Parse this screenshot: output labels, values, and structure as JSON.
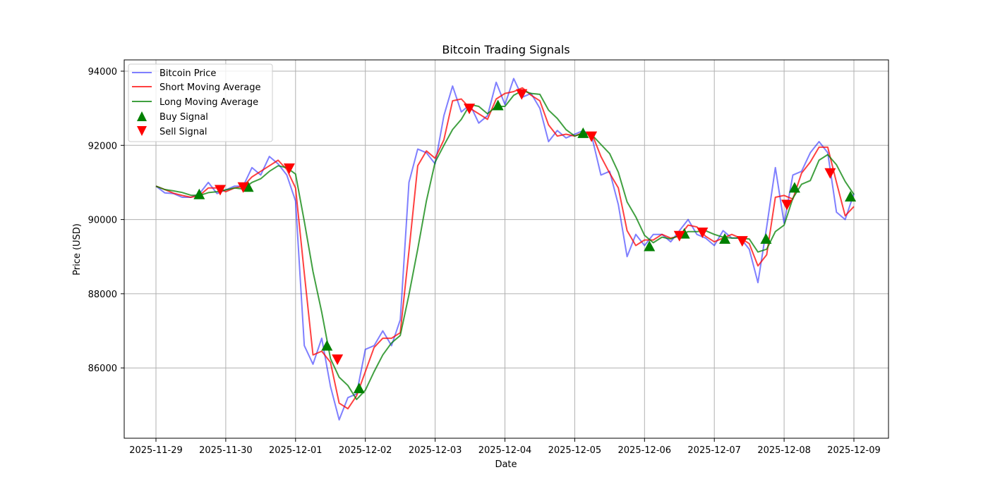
{
  "chart_data": {
    "type": "line",
    "title": "Bitcoin Trading Signals",
    "xlabel": "Date",
    "ylabel": "Price (USD)",
    "x_ticks": [
      "2025-11-29",
      "2025-11-30",
      "2025-12-01",
      "2025-12-02",
      "2025-12-03",
      "2025-12-04",
      "2025-12-05",
      "2025-12-06",
      "2025-12-07",
      "2025-12-08",
      "2025-12-09"
    ],
    "y_ticks": [
      86000,
      88000,
      90000,
      92000,
      94000
    ],
    "xlim_days_from_2025_11_29": [
      -0.46,
      10.5
    ],
    "ylim": [
      84100,
      94300
    ],
    "grid": true,
    "legend_position": "top-left",
    "legend": [
      "Bitcoin Price",
      "Short Moving Average",
      "Long Moving Average",
      "Buy Signal",
      "Sell Signal"
    ],
    "colors": {
      "price": "#0000ff",
      "short_ma": "#ff0000",
      "long_ma": "#008000",
      "buy": "#008000",
      "sell": "#ff0000"
    },
    "x_step_days": 0.125,
    "short_window": 2,
    "long_window": 4,
    "price": [
      90900,
      90720,
      90700,
      90600,
      90600,
      90700,
      91000,
      90700,
      90800,
      90900,
      90900,
      91400,
      91200,
      91700,
      91500,
      91200,
      90500,
      86600,
      86100,
      86800,
      85500,
      84600,
      85200,
      85300,
      86500,
      86600,
      87000,
      86600,
      87300,
      91000,
      91900,
      91800,
      91500,
      92800,
      93600,
      92900,
      93100,
      92600,
      92800,
      93700,
      93100,
      93800,
      93300,
      93400,
      93000,
      92100,
      92400,
      92200,
      92300,
      92400,
      92200,
      91200,
      91300,
      90400,
      89000,
      89600,
      89300,
      89600,
      89600,
      89400,
      89700,
      90000,
      89600,
      89500,
      89300,
      89700,
      89500,
      89500,
      89200,
      88300,
      89800,
      91400,
      89900,
      91200,
      91300,
      91800,
      92100,
      91800,
      90200,
      90000,
      90700
    ],
    "buy_signals": [
      [
        0.62,
        90680
      ],
      [
        1.32,
        90880
      ],
      [
        2.45,
        86600
      ],
      [
        2.91,
        85450
      ],
      [
        4.9,
        93080
      ],
      [
        6.12,
        92330
      ],
      [
        7.07,
        89280
      ],
      [
        7.57,
        89620
      ],
      [
        8.15,
        89480
      ],
      [
        8.74,
        89480
      ],
      [
        9.15,
        90860
      ],
      [
        9.95,
        90620
      ]
    ],
    "sell_signals": [
      [
        0.92,
        90800
      ],
      [
        1.25,
        90870
      ],
      [
        1.91,
        91380
      ],
      [
        2.6,
        86230
      ],
      [
        4.49,
        92990
      ],
      [
        5.24,
        93380
      ],
      [
        6.24,
        92240
      ],
      [
        7.5,
        89560
      ],
      [
        7.83,
        89650
      ],
      [
        8.4,
        89420
      ],
      [
        9.04,
        90400
      ],
      [
        9.66,
        91250
      ]
    ]
  }
}
